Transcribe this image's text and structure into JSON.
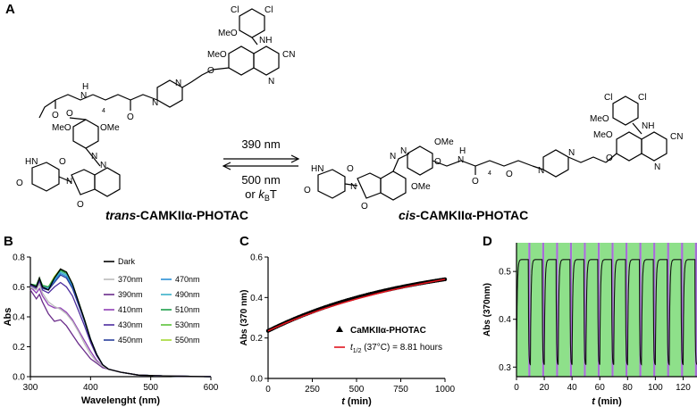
{
  "panels": {
    "A": "A",
    "B": "B",
    "C": "C",
    "D": "D"
  },
  "scheme": {
    "trans_prefix": "trans",
    "cis_prefix": "cis",
    "compound_suffix": "-CAMKIIα-PHOTAC",
    "forward_label": "390 nm",
    "reverse_label": "500 nm",
    "reverse_label_2_prefix": "or ",
    "reverse_label_2_k": "k",
    "reverse_label_2_sub": "B",
    "reverse_label_2_suffix": "T",
    "atom_labels": {
      "cl": "Cl",
      "meo": "MeO",
      "nh": "NH",
      "h": "H",
      "n": "N",
      "o": "O",
      "cn": "CN",
      "sub4": "4",
      "hn": "HN",
      "ome": "OMe"
    }
  },
  "chart_data": [
    {
      "type": "line",
      "id": "B",
      "xlabel": "Wavelenght (nm)",
      "ylabel": "Abs",
      "xlim": [
        300,
        600
      ],
      "ylim": [
        0,
        0.8
      ],
      "xticks": [
        300,
        400,
        500,
        600
      ],
      "yticks": [
        0.0,
        0.2,
        0.4,
        0.6,
        0.8
      ],
      "legend_placement": "top-right",
      "series": [
        {
          "name": "Dark",
          "color": "#000000",
          "x": [
            300,
            310,
            315,
            320,
            330,
            340,
            350,
            360,
            370,
            380,
            390,
            400,
            410,
            420,
            430,
            450,
            480,
            520,
            600
          ],
          "y": [
            0.62,
            0.6,
            0.66,
            0.6,
            0.58,
            0.66,
            0.72,
            0.7,
            0.62,
            0.5,
            0.38,
            0.25,
            0.15,
            0.08,
            0.05,
            0.03,
            0.01,
            0.005,
            0.0
          ]
        },
        {
          "name": "370nm",
          "color": "#bbbbbb",
          "x": [
            300,
            310,
            315,
            320,
            330,
            340,
            350,
            360,
            370,
            380,
            390,
            400,
            410,
            420,
            430,
            450,
            480,
            520,
            600
          ],
          "y": [
            0.6,
            0.58,
            0.62,
            0.56,
            0.5,
            0.47,
            0.45,
            0.42,
            0.37,
            0.3,
            0.22,
            0.15,
            0.1,
            0.07,
            0.05,
            0.03,
            0.01,
            0.005,
            0.0
          ]
        },
        {
          "name": "390nm",
          "color": "#6a2c8a",
          "x": [
            300,
            310,
            315,
            320,
            330,
            340,
            350,
            360,
            370,
            380,
            390,
            400,
            410,
            420,
            430,
            450,
            480,
            520,
            600
          ],
          "y": [
            0.58,
            0.52,
            0.55,
            0.5,
            0.42,
            0.37,
            0.38,
            0.34,
            0.28,
            0.22,
            0.17,
            0.12,
            0.09,
            0.06,
            0.05,
            0.03,
            0.01,
            0.005,
            0.0
          ]
        },
        {
          "name": "410nm",
          "color": "#8f3fb5",
          "x": [
            300,
            310,
            315,
            320,
            330,
            340,
            350,
            360,
            370,
            380,
            390,
            400,
            410,
            420,
            430,
            450,
            480,
            520,
            600
          ],
          "y": [
            0.6,
            0.56,
            0.59,
            0.54,
            0.48,
            0.46,
            0.46,
            0.43,
            0.38,
            0.31,
            0.24,
            0.17,
            0.11,
            0.07,
            0.05,
            0.03,
            0.01,
            0.005,
            0.0
          ]
        },
        {
          "name": "430nm",
          "color": "#4c2c9e",
          "x": [
            300,
            310,
            315,
            320,
            330,
            340,
            350,
            360,
            370,
            380,
            390,
            400,
            410,
            420,
            430,
            450,
            480,
            520,
            600
          ],
          "y": [
            0.61,
            0.59,
            0.63,
            0.58,
            0.56,
            0.6,
            0.63,
            0.6,
            0.54,
            0.44,
            0.34,
            0.23,
            0.14,
            0.08,
            0.05,
            0.03,
            0.01,
            0.005,
            0.0
          ]
        },
        {
          "name": "450nm",
          "color": "#2a3f9c",
          "x": [
            300,
            310,
            315,
            320,
            330,
            340,
            350,
            360,
            370,
            380,
            390,
            400,
            410,
            420,
            430,
            450,
            480,
            520,
            600
          ],
          "y": [
            0.62,
            0.6,
            0.64,
            0.59,
            0.58,
            0.63,
            0.68,
            0.66,
            0.59,
            0.48,
            0.37,
            0.25,
            0.15,
            0.08,
            0.05,
            0.03,
            0.01,
            0.005,
            0.0
          ]
        },
        {
          "name": "470nm",
          "color": "#2b8fd6",
          "x": [
            300,
            310,
            315,
            320,
            330,
            340,
            350,
            360,
            370,
            380,
            390,
            400,
            410,
            420,
            430,
            450,
            480,
            520,
            600
          ],
          "y": [
            0.62,
            0.6,
            0.65,
            0.6,
            0.59,
            0.64,
            0.69,
            0.67,
            0.6,
            0.49,
            0.37,
            0.25,
            0.15,
            0.08,
            0.05,
            0.03,
            0.01,
            0.005,
            0.0
          ]
        },
        {
          "name": "490nm",
          "color": "#3bb0c9",
          "x": [
            300,
            310,
            315,
            320,
            330,
            340,
            350,
            360,
            370,
            380,
            390,
            400,
            410,
            420,
            430,
            450,
            480,
            520,
            600
          ],
          "y": [
            0.62,
            0.6,
            0.65,
            0.6,
            0.59,
            0.65,
            0.7,
            0.68,
            0.61,
            0.49,
            0.37,
            0.25,
            0.15,
            0.08,
            0.05,
            0.03,
            0.01,
            0.005,
            0.0
          ]
        },
        {
          "name": "510nm",
          "color": "#1e9e4a",
          "x": [
            300,
            310,
            315,
            320,
            330,
            340,
            350,
            360,
            370,
            380,
            390,
            400,
            410,
            420,
            430,
            450,
            480,
            520,
            600
          ],
          "y": [
            0.62,
            0.61,
            0.66,
            0.61,
            0.6,
            0.66,
            0.71,
            0.69,
            0.62,
            0.5,
            0.38,
            0.25,
            0.15,
            0.08,
            0.05,
            0.03,
            0.01,
            0.005,
            0.0
          ]
        },
        {
          "name": "530nm",
          "color": "#5cc23a",
          "x": [
            300,
            310,
            315,
            320,
            330,
            340,
            350,
            360,
            370,
            380,
            390,
            400,
            410,
            420,
            430,
            450,
            480,
            520,
            600
          ],
          "y": [
            0.62,
            0.61,
            0.66,
            0.61,
            0.6,
            0.66,
            0.71,
            0.7,
            0.62,
            0.5,
            0.38,
            0.25,
            0.15,
            0.08,
            0.05,
            0.03,
            0.01,
            0.005,
            0.0
          ]
        },
        {
          "name": "550nm",
          "color": "#a4d934",
          "x": [
            300,
            310,
            315,
            320,
            330,
            340,
            350,
            360,
            370,
            380,
            390,
            400,
            410,
            420,
            430,
            450,
            480,
            520,
            600
          ],
          "y": [
            0.62,
            0.61,
            0.66,
            0.61,
            0.6,
            0.67,
            0.72,
            0.7,
            0.62,
            0.5,
            0.38,
            0.25,
            0.15,
            0.08,
            0.05,
            0.03,
            0.01,
            0.005,
            0.0
          ]
        }
      ]
    },
    {
      "type": "scatter",
      "id": "C",
      "xlabel_var": "t",
      "xlabel_unit": " (min)",
      "ylabel": "Abs (370 nm)",
      "xlim": [
        0,
        1000
      ],
      "ylim": [
        0,
        0.6
      ],
      "xticks": [
        0,
        250,
        500,
        750,
        1000
      ],
      "yticks": [
        0.0,
        0.2,
        0.4,
        0.6
      ],
      "legend_placement": "bottom-right",
      "series": [
        {
          "name": "CaMKIIα-PHOTAC",
          "color": "#000000",
          "x": [
            0,
            50,
            100,
            150,
            200,
            250,
            300,
            350,
            400,
            450,
            500,
            550,
            600,
            650,
            700,
            750,
            800,
            850,
            900,
            950,
            1000
          ],
          "y": [
            0.235,
            0.255,
            0.274,
            0.292,
            0.309,
            0.325,
            0.34,
            0.354,
            0.368,
            0.381,
            0.393,
            0.405,
            0.416,
            0.427,
            0.437,
            0.447,
            0.456,
            0.465,
            0.474,
            0.482,
            0.49
          ]
        },
        {
          "name_var": "t",
          "name_sub": "1/2",
          "name_suffix": " (37°C) = 8.81 hours",
          "color": "#e0141e",
          "x": [
            0,
            100,
            200,
            300,
            400,
            500,
            600,
            700,
            800,
            900,
            1000
          ],
          "y": [
            0.235,
            0.274,
            0.309,
            0.34,
            0.368,
            0.393,
            0.416,
            0.437,
            0.456,
            0.474,
            0.49
          ]
        }
      ]
    },
    {
      "type": "line",
      "id": "D",
      "xlabel_var": "t",
      "xlabel_unit": " (min)",
      "ylabel": "Abs (370nm)",
      "xlim": [
        0,
        130
      ],
      "ylim": [
        0.28,
        0.56
      ],
      "xticks": [
        0,
        20,
        40,
        60,
        80,
        100,
        120
      ],
      "yticks": [
        0.3,
        0.4,
        0.5
      ],
      "cycle_min": 10,
      "switch_min": 8.5,
      "high": 0.525,
      "low": 0.305,
      "bands": {
        "green": "#8ee08a",
        "purple": "#a66ed6"
      }
    }
  ]
}
